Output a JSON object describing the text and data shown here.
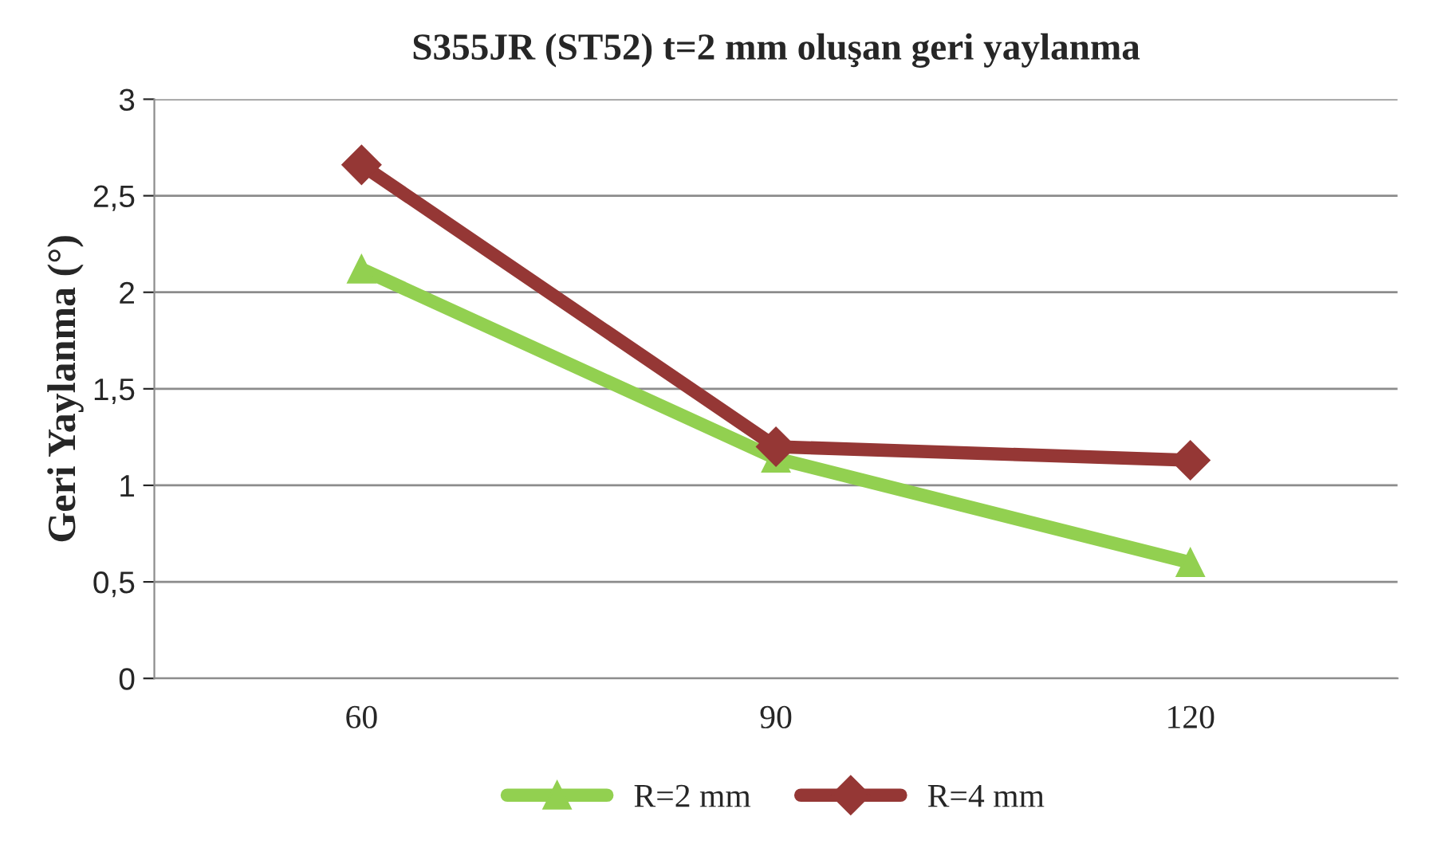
{
  "chart_data": {
    "type": "line",
    "title": "S355JR (ST52) t=2 mm oluşan geri yaylanma",
    "ylabel": "Geri Yaylanma (°)",
    "categories": [
      "60",
      "90",
      "120"
    ],
    "series": [
      {
        "name": "R=2 mm",
        "color": "#92d050",
        "marker": "triangle",
        "values": [
          2.12,
          1.14,
          0.6
        ]
      },
      {
        "name": "R=4 mm",
        "color": "#953735",
        "marker": "diamond",
        "values": [
          2.66,
          1.2,
          1.13
        ]
      }
    ],
    "ylim": [
      0,
      3
    ],
    "yticks": [
      0,
      {
        "value": 0.5,
        "label": "0,5"
      },
      1,
      {
        "value": 1.5,
        "label": "1,5"
      },
      2,
      {
        "value": 2.5,
        "label": "2,5"
      },
      3
    ],
    "grid": "y",
    "legend": "bottom"
  }
}
